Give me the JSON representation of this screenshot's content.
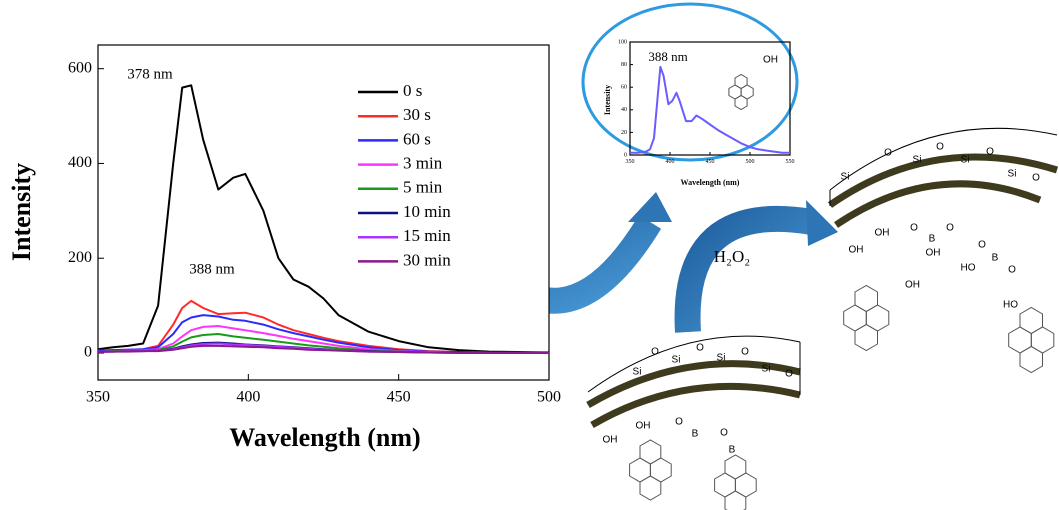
{
  "chart_data": [
    {
      "type": "line",
      "x_label": "Wavelength (nm)",
      "y_label": "Intensity",
      "annotations": [
        "378 nm",
        "388 nm"
      ],
      "x": [
        350,
        355,
        360,
        365,
        370,
        375,
        378,
        381,
        385,
        390,
        395,
        399,
        405,
        410,
        415,
        420,
        425,
        430,
        440,
        450,
        460,
        470,
        480,
        490,
        500
      ],
      "series": [
        {
          "name": "0 s",
          "color": "#000000",
          "values": [
            8,
            12,
            15,
            20,
            100,
            400,
            560,
            565,
            450,
            345,
            370,
            378,
            300,
            200,
            155,
            140,
            115,
            80,
            45,
            25,
            12,
            6,
            3,
            2,
            1
          ]
        },
        {
          "name": "30 s",
          "color": "#ff2a2a",
          "values": [
            5,
            6,
            7,
            8,
            15,
            60,
            95,
            110,
            95,
            82,
            84,
            85,
            75,
            60,
            48,
            40,
            32,
            25,
            15,
            8,
            4,
            2,
            1,
            1,
            0
          ]
        },
        {
          "name": "60 s",
          "color": "#2a2aff",
          "values": [
            5,
            6,
            7,
            8,
            12,
            40,
            65,
            75,
            80,
            77,
            70,
            68,
            60,
            50,
            42,
            35,
            28,
            22,
            12,
            6,
            3,
            2,
            1,
            1,
            0
          ]
        },
        {
          "name": "3 min",
          "color": "#ff33ff",
          "values": [
            3,
            4,
            5,
            6,
            8,
            20,
            35,
            48,
            55,
            57,
            52,
            48,
            42,
            36,
            30,
            25,
            20,
            15,
            8,
            4,
            2,
            1,
            0,
            0,
            0
          ]
        },
        {
          "name": "5 min",
          "color": "#1a9a1a",
          "values": [
            3,
            4,
            5,
            5,
            6,
            14,
            24,
            33,
            38,
            40,
            35,
            32,
            28,
            24,
            20,
            16,
            13,
            10,
            5,
            3,
            1,
            1,
            0,
            0,
            0
          ]
        },
        {
          "name": "10 min",
          "color": "#101080",
          "values": [
            3,
            3,
            4,
            4,
            5,
            9,
            14,
            18,
            21,
            22,
            20,
            18,
            16,
            14,
            12,
            10,
            8,
            6,
            4,
            2,
            1,
            1,
            0,
            0,
            0
          ]
        },
        {
          "name": "15 min",
          "color": "#aa33ff",
          "values": [
            3,
            3,
            4,
            4,
            5,
            8,
            12,
            16,
            19,
            20,
            18,
            17,
            15,
            13,
            11,
            9,
            7,
            6,
            3,
            2,
            1,
            0,
            0,
            0,
            0
          ]
        },
        {
          "name": "30 min",
          "color": "#8b1a8b",
          "values": [
            2,
            3,
            3,
            4,
            4,
            7,
            10,
            13,
            15,
            15,
            14,
            13,
            12,
            10,
            9,
            7,
            6,
            5,
            3,
            2,
            1,
            0,
            0,
            0,
            0
          ]
        }
      ],
      "xlim": [
        350,
        500
      ],
      "xticks": [
        350,
        400,
        450,
        500
      ],
      "ylim": [
        -57,
        650
      ],
      "yticks": [
        0,
        200,
        400,
        600
      ]
    },
    {
      "type": "line",
      "x_label": "Wavelength (nm)",
      "y_label": "Intensity",
      "annotations": [
        "388 nm"
      ],
      "x": [
        350,
        360,
        370,
        375,
        380,
        385,
        388,
        392,
        398,
        403,
        408,
        412,
        420,
        427,
        433,
        440,
        450,
        460,
        470,
        480,
        490,
        500,
        510,
        520,
        530,
        540,
        550
      ],
      "series": [
        {
          "color": "#6a5cff",
          "values": [
            2,
            2,
            3,
            5,
            15,
            55,
            78,
            70,
            45,
            48,
            55,
            48,
            30,
            30,
            35,
            32,
            27,
            22,
            18,
            14,
            10,
            7,
            5,
            4,
            3,
            2,
            2
          ]
        }
      ],
      "xlim": [
        350,
        550
      ],
      "xticks": [
        350,
        400,
        450,
        500,
        550
      ],
      "ylim": [
        0,
        100
      ],
      "yticks": [
        0,
        20,
        40,
        60,
        80,
        100
      ]
    }
  ],
  "diagram": {
    "reagent": "H₂O₂",
    "inset_pyrenol_label": "OH",
    "pyrenol_labels": [
      "OH",
      "HO"
    ],
    "shell_top_labels": [
      "Si",
      "O",
      "Si",
      "O",
      "Si",
      "O",
      "Si",
      "O",
      "OH",
      "OH",
      "O",
      "B",
      "O",
      "OH",
      "O",
      "B",
      "O",
      "HO"
    ],
    "shell_bottom_labels": [
      "Si",
      "O",
      "Si",
      "O",
      "Si",
      "O",
      "Si",
      "O",
      "OH",
      "OH",
      "O",
      "B",
      "O",
      "B"
    ]
  }
}
